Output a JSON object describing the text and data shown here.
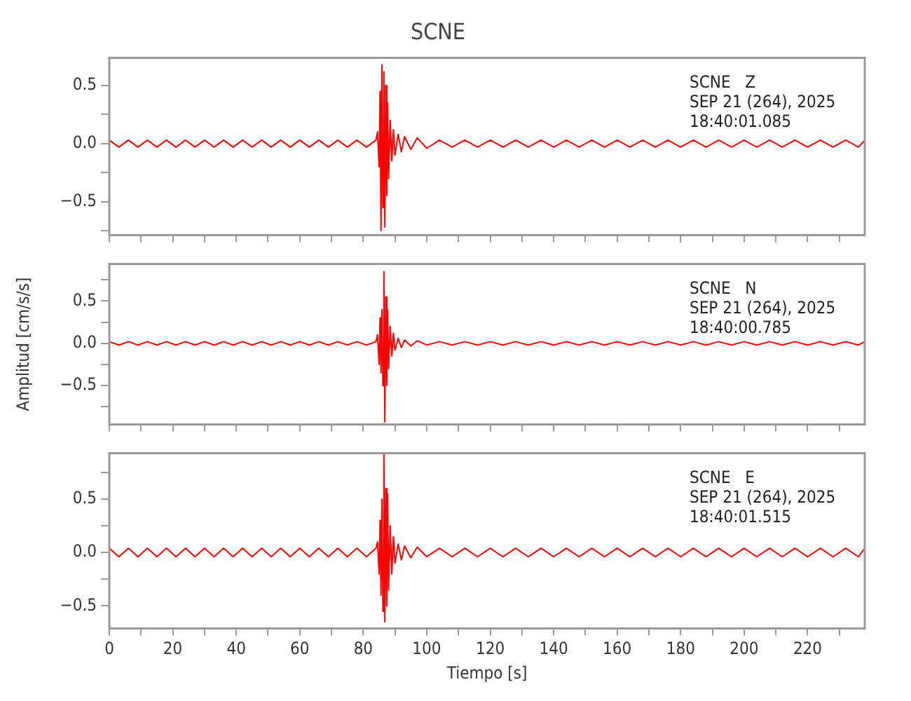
{
  "chart_data": [
    {
      "type": "line",
      "title": "SCNE",
      "xlim": [
        0,
        238
      ],
      "ylim": [
        -0.79,
        0.74
      ],
      "xticks": [
        0,
        {
          "value": 10,
          "label": null
        },
        20,
        {
          "value": 30,
          "label": null
        },
        40,
        {
          "value": 50,
          "label": null
        },
        60,
        {
          "value": 70,
          "label": null
        },
        80,
        {
          "value": 90,
          "label": null
        },
        100,
        {
          "value": 110,
          "label": null
        },
        120,
        {
          "value": 130,
          "label": null
        },
        140,
        {
          "value": 150,
          "label": null
        },
        160,
        {
          "value": 170,
          "label": null
        },
        180,
        {
          "value": 190,
          "label": null
        },
        200,
        {
          "value": 210,
          "label": null
        },
        220,
        {
          "value": 230,
          "label": null
        }
      ],
      "yticks": [
        {
          "value": -0.75,
          "label": null
        },
        {
          "value": -0.5,
          "label": "−0.5"
        },
        {
          "value": -0.25,
          "label": null
        },
        {
          "value": 0,
          "label": "0.0"
        },
        {
          "value": 0.25,
          "label": null
        },
        {
          "value": 0.5,
          "label": "0.5"
        }
      ],
      "tick_labels": "y",
      "annotations": [
        "SCNE   Z",
        "SEP 21 (264), 2025",
        "18:40:01.085"
      ],
      "series": [
        {
          "color": "#ff0000",
          "x": [
            0,
            3,
            6,
            9,
            12,
            15,
            18,
            21,
            24,
            27,
            30,
            33,
            36,
            39,
            42,
            45,
            48,
            51,
            54,
            57,
            60,
            63,
            66,
            69,
            72,
            75,
            78,
            81,
            84,
            84.5,
            85,
            85.3,
            85.6,
            85.9,
            86.2,
            86.5,
            86.8,
            87.1,
            87.4,
            87.7,
            88,
            88.5,
            89,
            89.5,
            90,
            91,
            92,
            93,
            95,
            97,
            100,
            104,
            108,
            112,
            116,
            120,
            124,
            128,
            132,
            136,
            140,
            144,
            148,
            152,
            156,
            160,
            164,
            168,
            172,
            176,
            180,
            184,
            188,
            192,
            196,
            200,
            204,
            208,
            212,
            216,
            220,
            224,
            228,
            232,
            236,
            238
          ],
          "values": [
            0.03,
            -0.03,
            0.03,
            -0.03,
            0.03,
            -0.03,
            0.03,
            -0.03,
            0.03,
            -0.03,
            0.03,
            -0.03,
            0.03,
            -0.03,
            0.03,
            -0.03,
            0.03,
            -0.03,
            0.03,
            -0.03,
            0.03,
            -0.03,
            0.03,
            -0.03,
            0.03,
            -0.03,
            0.03,
            -0.03,
            0.03,
            0.1,
            -0.2,
            0.45,
            -0.75,
            0.68,
            -0.55,
            0.62,
            -0.72,
            0.5,
            -0.45,
            0.35,
            -0.3,
            0.2,
            -0.15,
            0.12,
            -0.1,
            0.08,
            -0.07,
            0.06,
            -0.05,
            0.05,
            -0.04,
            0.03,
            -0.03,
            0.03,
            -0.03,
            0.03,
            -0.03,
            0.03,
            -0.03,
            0.03,
            -0.03,
            0.03,
            -0.03,
            0.03,
            -0.03,
            0.03,
            -0.03,
            0.03,
            -0.03,
            0.03,
            -0.03,
            0.03,
            -0.03,
            0.03,
            -0.03,
            0.03,
            -0.03,
            0.03,
            -0.03,
            0.03,
            -0.03,
            0.03,
            -0.03,
            0.03,
            -0.03,
            0.03
          ]
        }
      ]
    },
    {
      "type": "line",
      "ylabel": "Amplitud [cm/s/s]",
      "xlim": [
        0,
        238
      ],
      "ylim": [
        -0.96,
        0.94
      ],
      "xticks": [
        0,
        {
          "value": 10,
          "label": null
        },
        20,
        {
          "value": 30,
          "label": null
        },
        40,
        {
          "value": 50,
          "label": null
        },
        60,
        {
          "value": 70,
          "label": null
        },
        80,
        {
          "value": 90,
          "label": null
        },
        100,
        {
          "value": 110,
          "label": null
        },
        120,
        {
          "value": 130,
          "label": null
        },
        140,
        {
          "value": 150,
          "label": null
        },
        160,
        {
          "value": 170,
          "label": null
        },
        180,
        {
          "value": 190,
          "label": null
        },
        200,
        {
          "value": 210,
          "label": null
        },
        220,
        {
          "value": 230,
          "label": null
        }
      ],
      "yticks": [
        {
          "value": -0.75,
          "label": null
        },
        {
          "value": -0.5,
          "label": "−0.5"
        },
        {
          "value": -0.25,
          "label": null
        },
        {
          "value": 0,
          "label": "0.0"
        },
        {
          "value": 0.25,
          "label": null
        },
        {
          "value": 0.5,
          "label": "0.5"
        },
        {
          "value": 0.75,
          "label": null
        }
      ],
      "tick_labels": "y",
      "annotations": [
        "SCNE   N",
        "SEP 21 (264), 2025",
        "18:40:00.785"
      ],
      "series": [
        {
          "color": "#ff0000",
          "x": [
            0,
            3,
            6,
            9,
            12,
            15,
            18,
            21,
            24,
            27,
            30,
            33,
            36,
            39,
            42,
            45,
            48,
            51,
            54,
            57,
            60,
            63,
            66,
            69,
            72,
            75,
            78,
            81,
            84,
            84.5,
            85,
            85.3,
            85.6,
            85.9,
            86.2,
            86.5,
            86.8,
            87.1,
            87.4,
            87.7,
            88,
            88.5,
            89,
            89.5,
            90,
            91,
            92,
            93,
            95,
            97,
            100,
            104,
            108,
            112,
            116,
            120,
            124,
            128,
            132,
            136,
            140,
            144,
            148,
            152,
            156,
            160,
            164,
            168,
            172,
            176,
            180,
            184,
            188,
            192,
            196,
            200,
            204,
            208,
            212,
            216,
            220,
            224,
            228,
            232,
            236,
            238
          ],
          "values": [
            0.02,
            -0.02,
            0.02,
            -0.02,
            0.02,
            -0.02,
            0.02,
            -0.02,
            0.02,
            -0.02,
            0.02,
            -0.02,
            0.02,
            -0.02,
            0.02,
            -0.02,
            0.02,
            -0.02,
            0.02,
            -0.02,
            0.02,
            -0.02,
            0.02,
            -0.02,
            0.02,
            -0.02,
            0.02,
            -0.02,
            0.02,
            0.1,
            -0.25,
            0.3,
            -0.35,
            0.4,
            -0.5,
            0.85,
            -0.93,
            0.55,
            -0.5,
            0.4,
            -0.3,
            0.2,
            -0.15,
            0.12,
            -0.08,
            0.06,
            -0.05,
            0.04,
            -0.03,
            0.03,
            -0.02,
            0.02,
            -0.02,
            0.02,
            -0.02,
            0.02,
            -0.02,
            0.02,
            -0.02,
            0.02,
            -0.02,
            0.02,
            -0.02,
            0.02,
            -0.02,
            0.02,
            -0.02,
            0.02,
            -0.02,
            0.02,
            -0.02,
            0.02,
            -0.02,
            0.02,
            -0.02,
            0.02,
            -0.02,
            0.02,
            -0.02,
            0.02,
            -0.02,
            0.02,
            -0.02,
            0.02,
            -0.02,
            0.02
          ]
        }
      ]
    },
    {
      "type": "line",
      "xlabel": "Tiempo [s]",
      "xlim": [
        0,
        238
      ],
      "ylim": [
        -0.71,
        0.93
      ],
      "xticks": [
        0,
        {
          "value": 10,
          "label": null
        },
        20,
        {
          "value": 30,
          "label": null
        },
        40,
        {
          "value": 50,
          "label": null
        },
        60,
        {
          "value": 70,
          "label": null
        },
        80,
        {
          "value": 90,
          "label": null
        },
        100,
        {
          "value": 110,
          "label": null
        },
        120,
        {
          "value": 130,
          "label": null
        },
        140,
        {
          "value": 150,
          "label": null
        },
        160,
        {
          "value": 170,
          "label": null
        },
        180,
        {
          "value": 190,
          "label": null
        },
        200,
        {
          "value": 210,
          "label": null
        },
        220,
        {
          "value": 230,
          "label": null
        }
      ],
      "yticks": [
        {
          "value": -0.5,
          "label": "−0.5"
        },
        {
          "value": -0.25,
          "label": null
        },
        {
          "value": 0,
          "label": "0.0"
        },
        {
          "value": 0.25,
          "label": null
        },
        {
          "value": 0.5,
          "label": "0.5"
        },
        {
          "value": 0.75,
          "label": null
        }
      ],
      "annotations": [
        "SCNE   E",
        "SEP 21 (264), 2025",
        "18:40:01.515"
      ],
      "series": [
        {
          "color": "#ff0000",
          "x": [
            0,
            3,
            6,
            9,
            12,
            15,
            18,
            21,
            24,
            27,
            30,
            33,
            36,
            39,
            42,
            45,
            48,
            51,
            54,
            57,
            60,
            63,
            66,
            69,
            72,
            75,
            78,
            81,
            84,
            84.5,
            85,
            85.3,
            85.6,
            85.9,
            86.2,
            86.5,
            86.8,
            87.1,
            87.4,
            87.7,
            88,
            88.5,
            89,
            89.5,
            90,
            91,
            92,
            93,
            95,
            97,
            100,
            104,
            108,
            112,
            116,
            120,
            124,
            128,
            132,
            136,
            140,
            144,
            148,
            152,
            156,
            160,
            164,
            168,
            172,
            176,
            180,
            184,
            188,
            192,
            196,
            200,
            204,
            208,
            212,
            216,
            220,
            224,
            228,
            232,
            236,
            238
          ],
          "values": [
            0.04,
            -0.04,
            0.04,
            -0.04,
            0.04,
            -0.04,
            0.04,
            -0.04,
            0.04,
            -0.04,
            0.04,
            -0.04,
            0.04,
            -0.04,
            0.04,
            -0.04,
            0.04,
            -0.04,
            0.04,
            -0.04,
            0.04,
            -0.04,
            0.04,
            -0.04,
            0.04,
            -0.04,
            0.04,
            -0.04,
            0.04,
            0.1,
            -0.2,
            0.3,
            -0.4,
            0.5,
            -0.55,
            0.93,
            -0.65,
            0.6,
            -0.5,
            0.55,
            -0.35,
            0.25,
            -0.2,
            0.15,
            -0.1,
            0.08,
            -0.07,
            0.06,
            -0.05,
            0.05,
            -0.04,
            0.04,
            -0.04,
            0.04,
            -0.04,
            0.04,
            -0.04,
            0.04,
            -0.04,
            0.04,
            -0.04,
            0.04,
            -0.04,
            0.04,
            -0.04,
            0.04,
            -0.04,
            0.04,
            -0.04,
            0.04,
            -0.04,
            0.04,
            -0.04,
            0.04,
            -0.04,
            0.04,
            -0.04,
            0.04,
            -0.04,
            0.04,
            -0.04,
            0.04,
            -0.04,
            0.04,
            -0.04,
            0.04
          ]
        }
      ]
    }
  ]
}
